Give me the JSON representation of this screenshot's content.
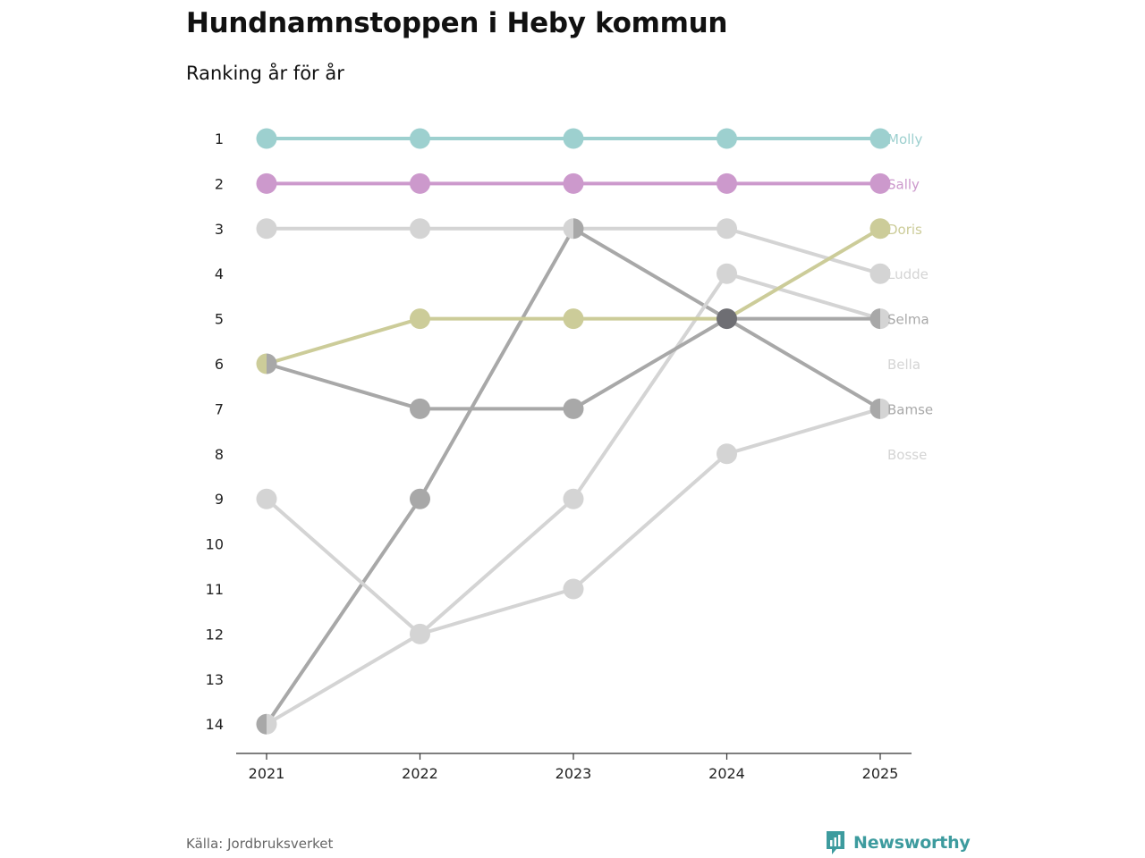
{
  "chart_data": {
    "type": "line",
    "title": "Hundnamnstoppen i Heby kommun",
    "subtitle": "Ranking år för år",
    "x": [
      "2021",
      "2022",
      "2023",
      "2024",
      "2025"
    ],
    "y_ticks": [
      "1",
      "2",
      "3",
      "4",
      "5",
      "6",
      "7",
      "8",
      "9",
      "10",
      "11",
      "12",
      "13",
      "14"
    ],
    "ylim": [
      1,
      14
    ],
    "y_inverted": true,
    "series": [
      {
        "name": "Molly",
        "ranks": [
          1,
          1,
          1,
          1,
          1
        ],
        "color": "#9dd0cf"
      },
      {
        "name": "Sally",
        "ranks": [
          2,
          2,
          2,
          2,
          2
        ],
        "color": "#cc99cc"
      },
      {
        "name": "Doris",
        "ranks": [
          6,
          5,
          5,
          5,
          3
        ],
        "color": "#cccc99"
      },
      {
        "name": "Ludde",
        "ranks": [
          3,
          3,
          3,
          3,
          4
        ],
        "color": "#d4d4d4"
      },
      {
        "name": "Selma",
        "ranks": [
          6,
          7,
          7,
          5,
          5
        ],
        "color": "#a8a8a8"
      },
      {
        "name": "Bella",
        "ranks": [
          9,
          12,
          9,
          4,
          5
        ],
        "color": "#d4d4d4"
      },
      {
        "name": "Bamse",
        "ranks": [
          14,
          9,
          3,
          5,
          7
        ],
        "color": "#a8a8a8"
      },
      {
        "name": "Bosse",
        "ranks": [
          14,
          12,
          11,
          8,
          7
        ],
        "color": "#d4d4d4"
      }
    ],
    "overlap_color": "#6e6e73",
    "label_ranks": {
      "Molly": 1,
      "Sally": 2,
      "Doris": 3,
      "Ludde": 4,
      "Selma": 5,
      "Bella": 6,
      "Bamse": 7,
      "Bosse": 8
    }
  },
  "footer": {
    "source": "Källa: Jordbruksverket",
    "brand": "Newsworthy",
    "brand_color": "#3d9b9e"
  }
}
